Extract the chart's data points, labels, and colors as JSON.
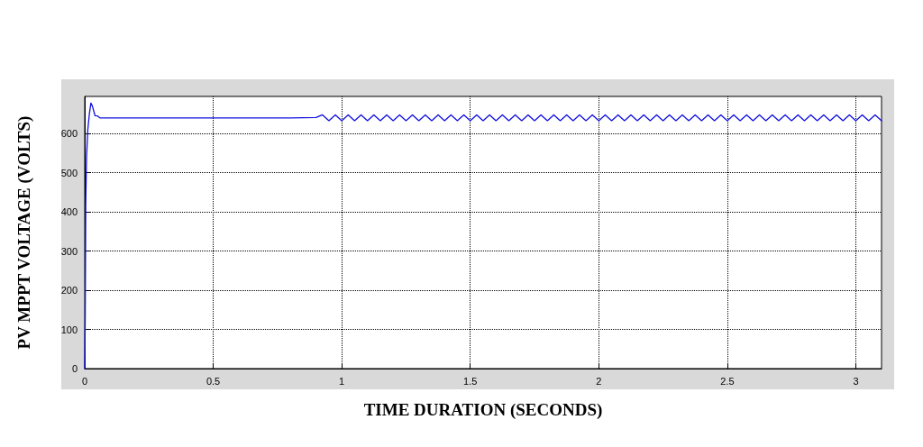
{
  "chart_data": {
    "type": "line",
    "xlabel": "TIME DURATION (SECONDS)",
    "ylabel": "PV MPPT VOLTAGE (VOLTS)",
    "xlim": [
      0,
      3.1
    ],
    "xticks": [
      0,
      0.5,
      1,
      1.5,
      2,
      2.5,
      3
    ],
    "ylim": [
      0,
      695
    ],
    "yticks": [
      0,
      100,
      200,
      300,
      400,
      500,
      600
    ],
    "grid": true,
    "series": [
      {
        "color": "#1010e0",
        "x": [
          0,
          0.002,
          0.004,
          0.007,
          0.012,
          0.018,
          0.024,
          0.03,
          0.04,
          0.05,
          0.06,
          0.1,
          0.5,
          0.8,
          0.9,
          0.925,
          0.95,
          0.975,
          1,
          1.025,
          1.05,
          1.075,
          1.1,
          1.125,
          1.15,
          1.175,
          1.2,
          1.225,
          1.25,
          1.275,
          1.3,
          1.325,
          1.35,
          1.375,
          1.4,
          1.425,
          1.45,
          1.475,
          1.5,
          1.525,
          1.55,
          1.575,
          1.6,
          1.625,
          1.65,
          1.675,
          1.7,
          1.725,
          1.75,
          1.775,
          1.8,
          1.825,
          1.85,
          1.875,
          1.9,
          1.925,
          1.95,
          1.975,
          2,
          2.025,
          2.05,
          2.075,
          2.1,
          2.125,
          2.15,
          2.175,
          2.2,
          2.225,
          2.25,
          2.275,
          2.3,
          2.325,
          2.35,
          2.375,
          2.4,
          2.425,
          2.45,
          2.475,
          2.5,
          2.525,
          2.55,
          2.575,
          2.6,
          2.625,
          2.65,
          2.675,
          2.7,
          2.725,
          2.75,
          2.775,
          2.8,
          2.825,
          2.85,
          2.875,
          2.9,
          2.925,
          2.95,
          2.975,
          3,
          3.025,
          3.05,
          3.075,
          3.1
        ],
        "values": [
          0,
          140,
          420,
          540,
          610,
          650,
          678,
          670,
          646,
          645,
          640,
          640,
          640,
          640,
          641,
          648,
          633,
          648,
          633,
          648,
          633,
          648,
          633,
          648,
          633,
          648,
          633,
          648,
          633,
          648,
          633,
          648,
          633,
          648,
          633,
          648,
          633,
          648,
          633,
          648,
          633,
          648,
          633,
          648,
          633,
          648,
          633,
          648,
          633,
          648,
          633,
          648,
          633,
          648,
          633,
          648,
          633,
          648,
          633,
          648,
          633,
          648,
          633,
          648,
          633,
          648,
          633,
          648,
          633,
          648,
          633,
          648,
          633,
          648,
          633,
          648,
          633,
          648,
          633,
          648,
          633,
          648,
          633,
          648,
          633,
          648,
          633,
          648,
          633,
          648,
          633,
          648,
          633,
          648,
          633,
          648,
          633,
          648,
          633,
          648,
          633,
          648,
          633
        ]
      }
    ],
    "marker": "none",
    "line_style": "solid"
  }
}
